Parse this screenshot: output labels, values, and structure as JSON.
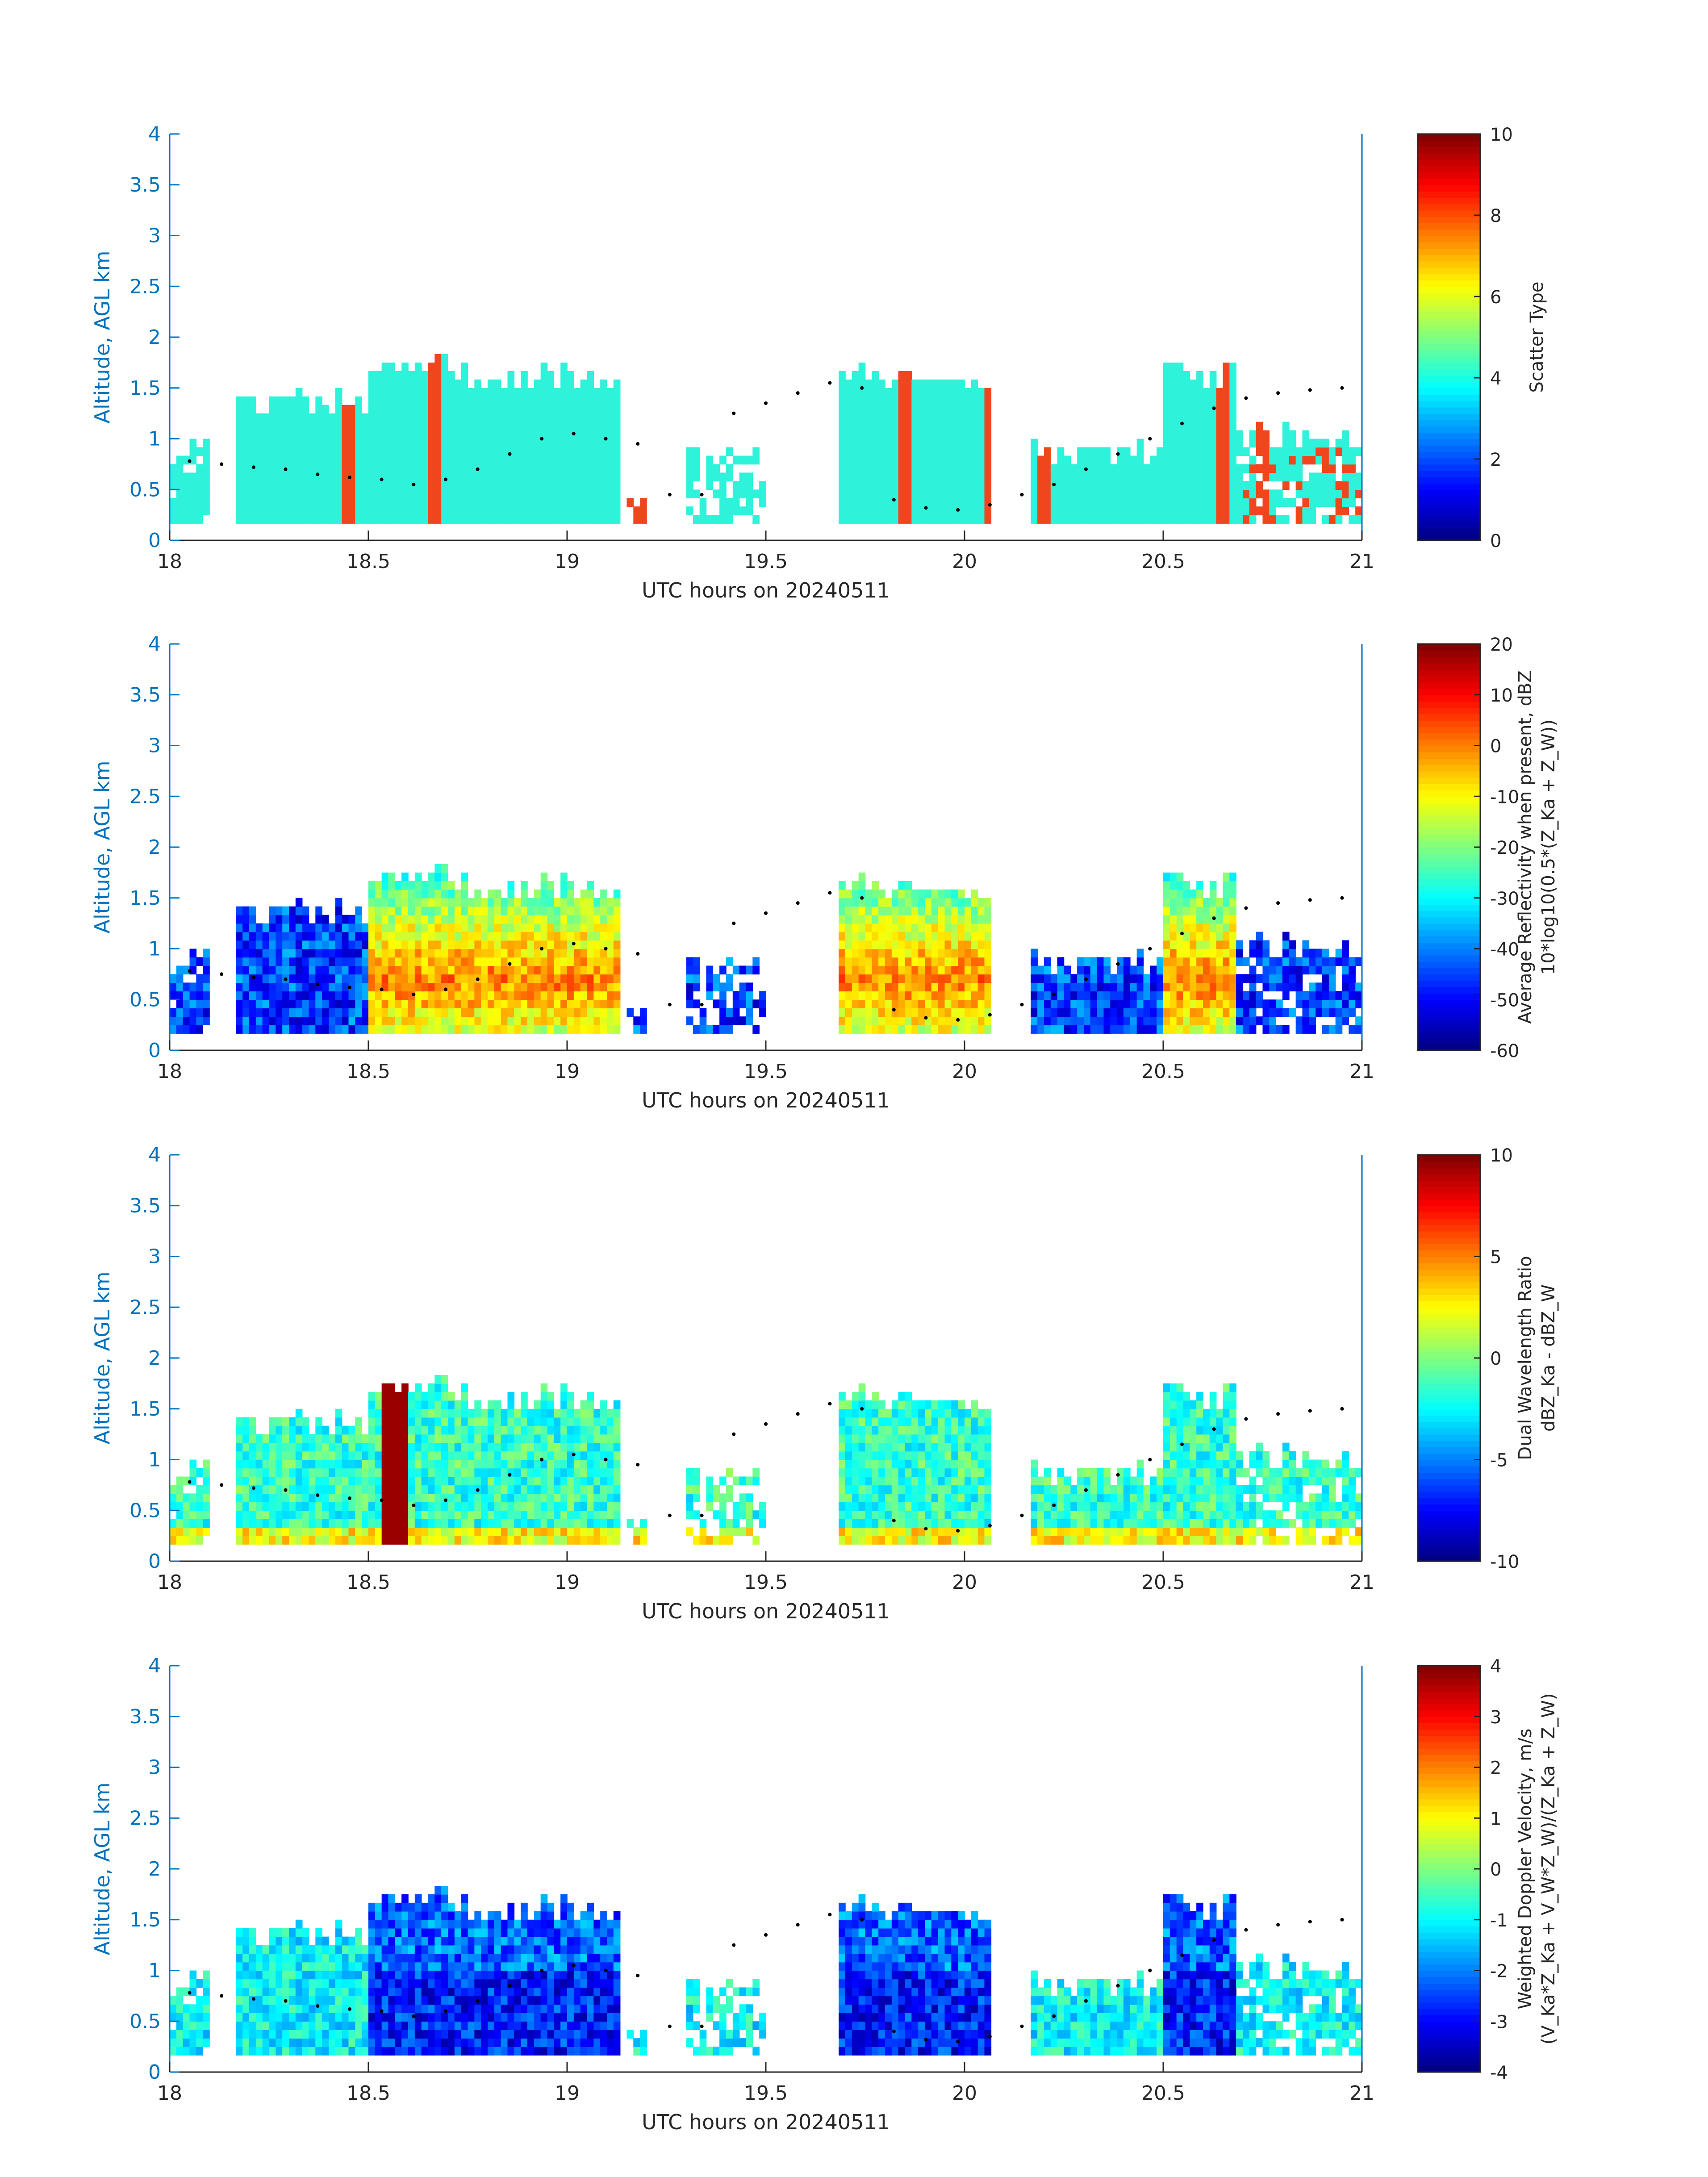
{
  "colors": {
    "axis_color": "#0072BD",
    "text_color": "#262626",
    "scatter_cyan": "#2EF2DA",
    "scatter_orange": "#F0461E",
    "background": "#ffffff"
  },
  "colormap": "jet",
  "chart_data": [
    {
      "type": "heatmap",
      "xlabel": "UTC hours on 20240511",
      "ylabel": "Altitude, AGL km",
      "xlim": [
        18,
        21
      ],
      "ylim": [
        0,
        4
      ],
      "x_ticks": [
        "18",
        "18.5",
        "19",
        "19.5",
        "20",
        "20.5",
        "21"
      ],
      "y_ticks": [
        "0",
        "0.5",
        "1",
        "1.5",
        "2",
        "2.5",
        "3",
        "3.5",
        "4"
      ],
      "colorbar": {
        "label_lines": [
          "Scatter Type"
        ],
        "clim": [
          0,
          10
        ],
        "ticks": [
          "0",
          "2",
          "4",
          "6",
          "8",
          "10"
        ]
      },
      "field": "scatter_type",
      "categories": [
        3.5,
        7.5
      ],
      "segments": [
        {
          "x": [
            18.0,
            18.1
          ],
          "top": 0.95
        },
        {
          "x": [
            18.17,
            19.13
          ],
          "top": 1.7
        },
        {
          "x": [
            19.15,
            19.32
          ],
          "top": 0.7,
          "sparse": true,
          "value": 7.5
        },
        {
          "x": [
            19.3,
            19.5
          ],
          "top": 0.85,
          "sparse": true
        },
        {
          "x": [
            19.68,
            20.07
          ],
          "top": 1.65
        },
        {
          "x": [
            20.17,
            20.5
          ],
          "top": 0.9
        },
        {
          "x": [
            20.5,
            20.68
          ],
          "top": 1.7
        },
        {
          "x": [
            20.68,
            21.0
          ],
          "top": 1.1
        }
      ],
      "cloud_top_points_km": [
        0.78,
        0.75,
        0.72,
        0.7,
        0.65,
        0.62,
        0.6,
        0.55,
        0.6,
        0.7,
        0.85,
        1.0,
        1.05,
        1.0,
        0.95,
        0.45,
        0.45,
        1.25,
        1.35,
        1.45,
        1.55,
        1.5,
        0.4,
        0.32,
        0.3,
        0.35,
        0.45,
        0.55,
        0.7,
        0.85,
        1.0,
        1.15,
        1.3,
        1.4,
        1.45,
        1.48,
        1.5
      ]
    },
    {
      "type": "heatmap",
      "xlabel": "UTC hours on 20240511",
      "ylabel": "Altitude, AGL km",
      "xlim": [
        18,
        21
      ],
      "ylim": [
        0,
        4
      ],
      "x_ticks": [
        "18",
        "18.5",
        "19",
        "19.5",
        "20",
        "20.5",
        "21"
      ],
      "y_ticks": [
        "0",
        "0.5",
        "1",
        "1.5",
        "2",
        "2.5",
        "3",
        "3.5",
        "4"
      ],
      "colorbar": {
        "label_lines": [
          "Average Reflectivity when present, dBZ",
          "10*log10(0.5*(Z_Ka + Z_W))"
        ],
        "clim": [
          -60,
          20
        ],
        "ticks": [
          "-60",
          "-50",
          "-40",
          "-30",
          "-20",
          "-10",
          "0",
          "10",
          "20"
        ]
      },
      "field": "reflectivity_dBZ"
    },
    {
      "type": "heatmap",
      "xlabel": "UTC hours on 20240511",
      "ylabel": "Altitude, AGL km",
      "xlim": [
        18,
        21
      ],
      "ylim": [
        0,
        4
      ],
      "x_ticks": [
        "18",
        "18.5",
        "19",
        "19.5",
        "20",
        "20.5",
        "21"
      ],
      "y_ticks": [
        "0",
        "0.5",
        "1",
        "1.5",
        "2",
        "2.5",
        "3",
        "3.5",
        "4"
      ],
      "colorbar": {
        "label_lines": [
          "Dual Wavelength Ratio",
          "dBZ_Ka - dBZ_W"
        ],
        "clim": [
          -10,
          10
        ],
        "ticks": [
          "-10",
          "-5",
          "0",
          "5",
          "10"
        ]
      },
      "field": "dual_wavelength_ratio"
    },
    {
      "type": "heatmap",
      "xlabel": "UTC hours on 20240511",
      "ylabel": "Altitude, AGL km",
      "xlim": [
        18,
        21
      ],
      "ylim": [
        0,
        4
      ],
      "x_ticks": [
        "18",
        "18.5",
        "19",
        "19.5",
        "20",
        "20.5",
        "21"
      ],
      "y_ticks": [
        "0",
        "0.5",
        "1",
        "1.5",
        "2",
        "2.5",
        "3",
        "3.5",
        "4"
      ],
      "colorbar": {
        "label_lines": [
          "Weighted Doppler Velocity, m/s",
          "(V_Ka*Z_Ka + V_W*Z_W)/(Z_Ka + Z_W)"
        ],
        "clim": [
          -4,
          4
        ],
        "ticks": [
          "-4",
          "-3",
          "-2",
          "-1",
          "0",
          "1",
          "2",
          "3",
          "4"
        ]
      },
      "field": "doppler_velocity_ms"
    }
  ]
}
